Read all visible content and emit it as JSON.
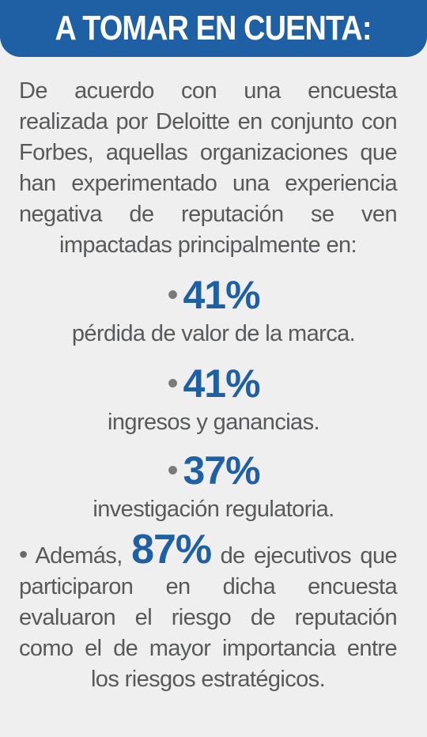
{
  "header": {
    "title": "A TOMAR EN CUENTA:"
  },
  "intro": {
    "text": "De acuerdo con una encuesta realizada por Deloitte en conjunto con Forbes, aquellas organizaciones que han experimentado una experiencia negativa de reputación se ven impactadas principalmente en:"
  },
  "stats": [
    {
      "bullet": "•",
      "value": "41%",
      "label": "pérdida de valor de la marca."
    },
    {
      "bullet": "•",
      "value": "41%",
      "label": "ingresos y ganancias."
    },
    {
      "bullet": "•",
      "value": "37%",
      "label": "investigación regulatoria."
    }
  ],
  "outro": {
    "bullet": "•",
    "lead": "Además,",
    "value": "87%",
    "text": "de ejecutivos que participaron en dicha encuesta evaluaron el riesgo de reputación como el de mayor importancia entre los riesgos estratégicos."
  },
  "colors": {
    "accent": "#1f5fa3",
    "text": "#58595b",
    "background": "#efefef"
  }
}
